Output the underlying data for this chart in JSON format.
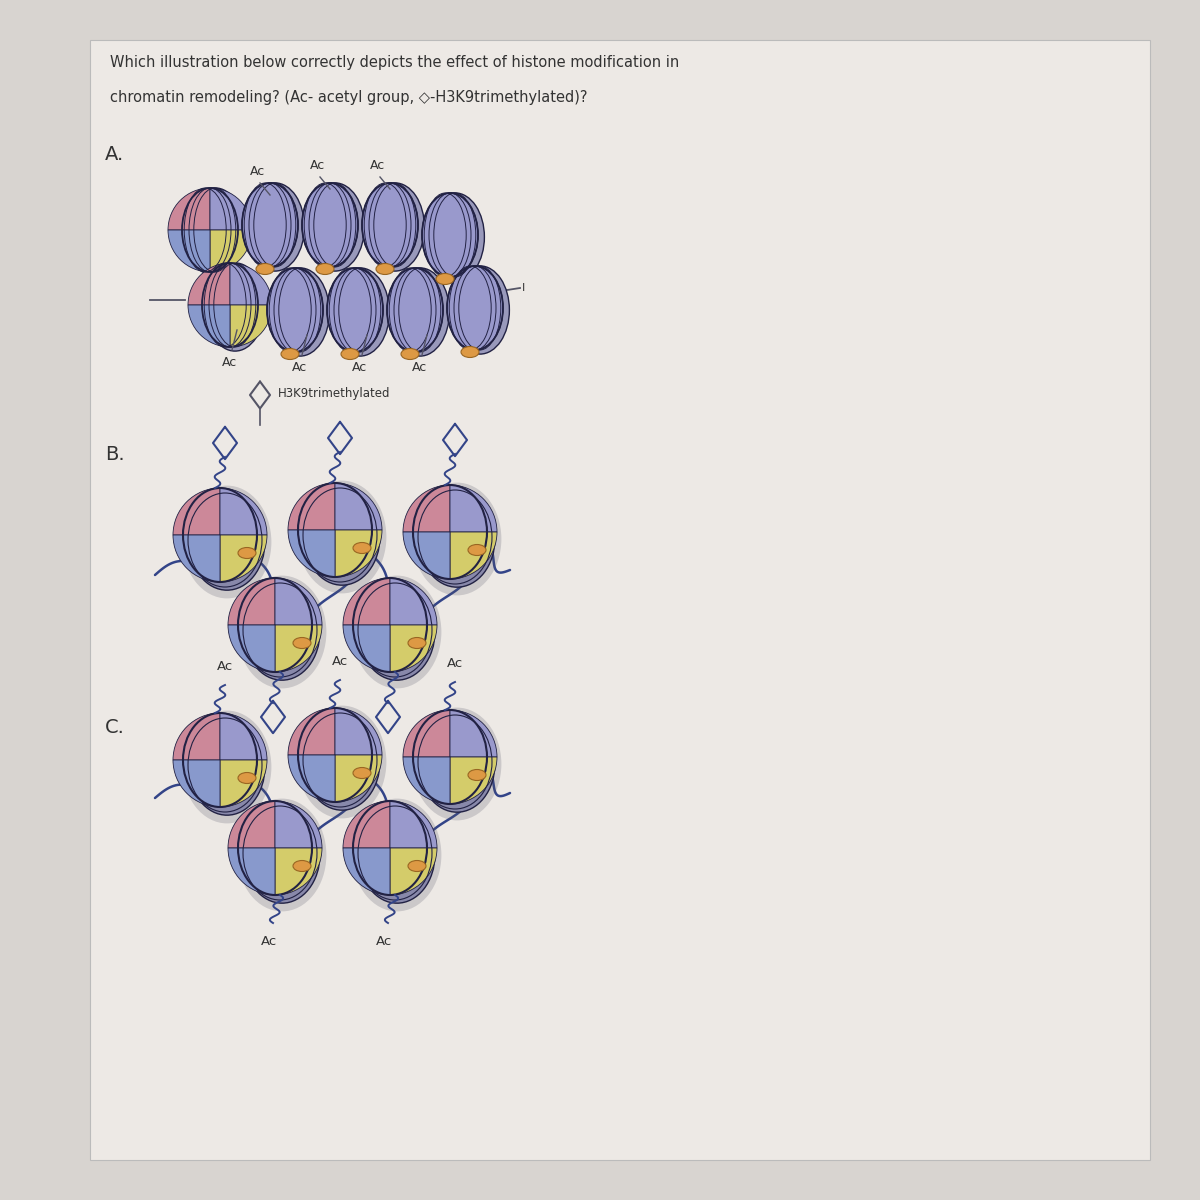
{
  "title_line1": "Which illustration below correctly depicts the effect of histone modification in",
  "title_line2": "chromatin remodeling? (Ac- acetyl group, ◇-H3K9trimethylated)?",
  "bg_color": "#d8d4d0",
  "paper_color": "#ede9e5",
  "histone_pink": "#cc8899",
  "histone_purple": "#9999cc",
  "histone_yellow": "#d4cc6a",
  "histone_blue": "#8899cc",
  "histone_outline": "#222244",
  "histone_shadow": "#555566",
  "linker_color": "#dd9944",
  "linker_outline": "#996622",
  "dna_color_A": "#555566",
  "dna_color_BC": "#334488",
  "label_color": "#333333",
  "label_A": "A.",
  "label_B": "B.",
  "label_C": "C.",
  "legend_label": "H3K9trimethylated",
  "ac_label": "Ac"
}
